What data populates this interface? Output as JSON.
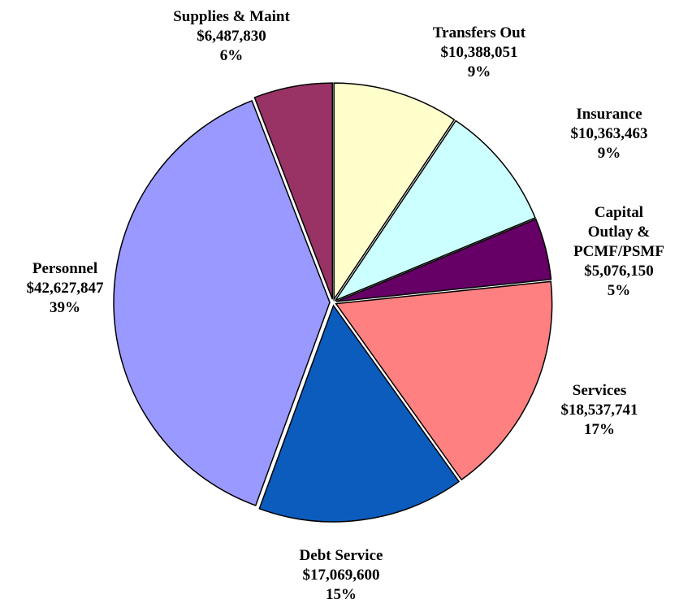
{
  "chart_data": {
    "type": "pie",
    "categories": [
      "Transfers Out",
      "Insurance",
      "Capital Outlay &\nPCMF/PSMF",
      "Services",
      "Debt Service",
      "Personnel",
      "Supplies & Maint"
    ],
    "values": [
      10388051,
      10363463,
      5076150,
      18537741,
      17069600,
      42627847,
      6487830
    ],
    "value_labels": [
      "$10,388,051",
      "$10,363,463",
      "$5,076,150",
      "$18,537,741",
      "$17,069,600",
      "$42,627,847",
      "$6,487,830"
    ],
    "percents": [
      9,
      9,
      5,
      17,
      15,
      39,
      6
    ],
    "percent_labels": [
      "9%",
      "9%",
      "5%",
      "17%",
      "15%",
      "39%",
      "6%"
    ],
    "colors": [
      "#ffffcc",
      "#ccffff",
      "#660066",
      "#ff8080",
      "#0b5cbd",
      "#9999ff",
      "#993366"
    ]
  }
}
